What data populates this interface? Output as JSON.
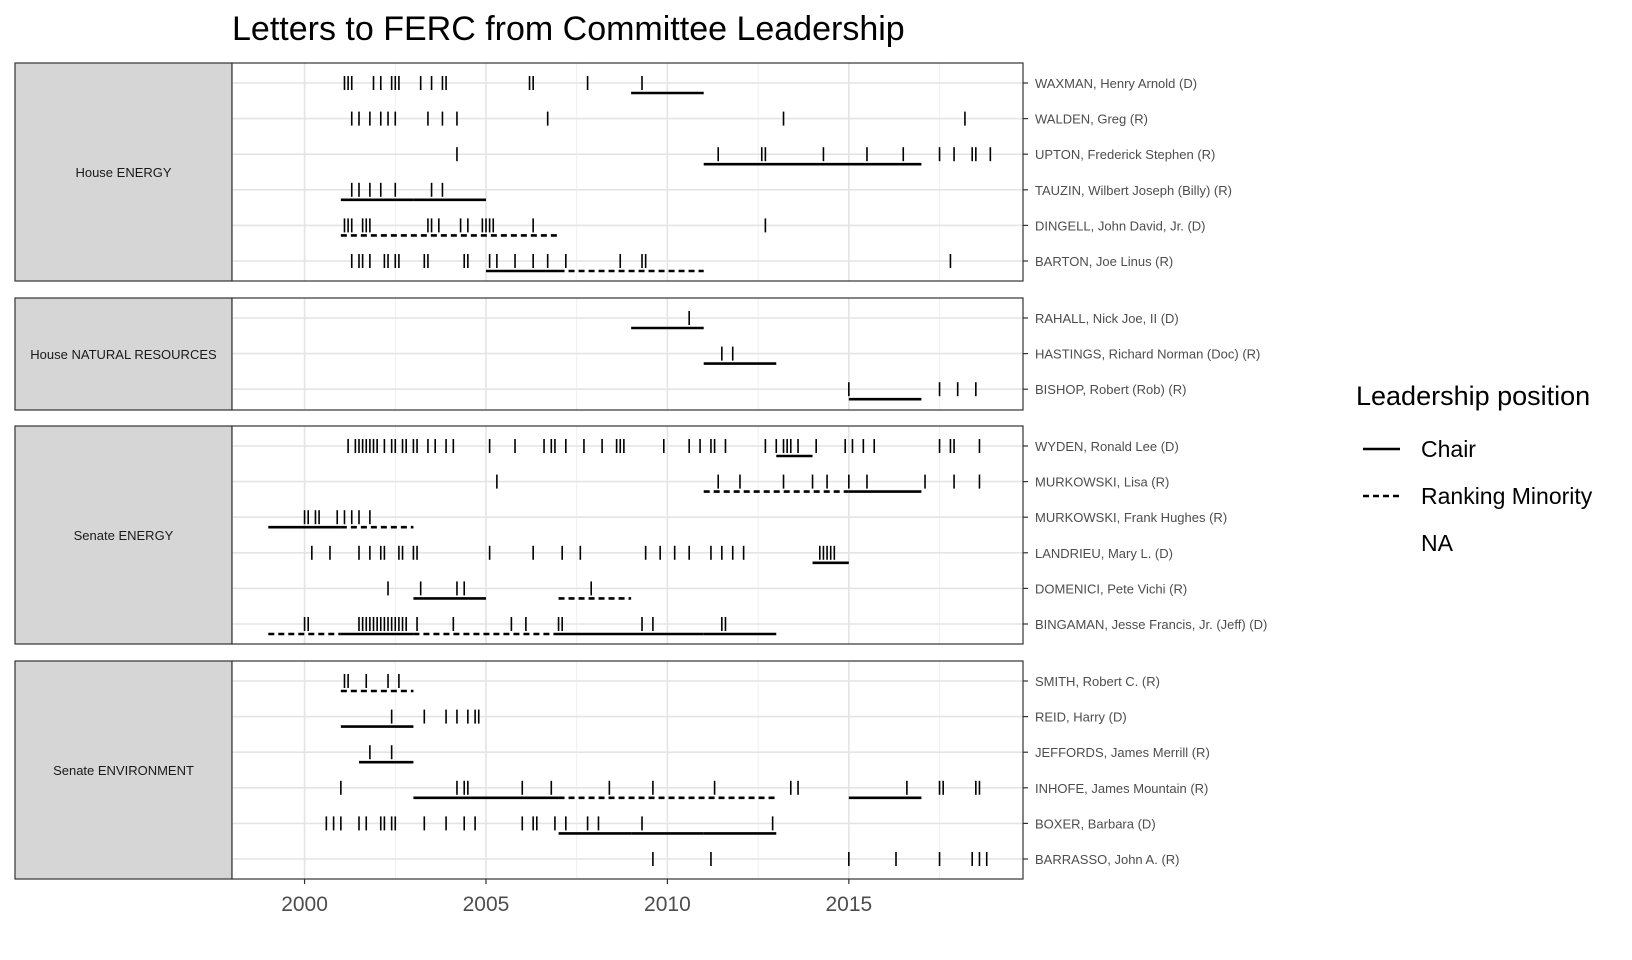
{
  "chart_data": {
    "type": "timeline",
    "title": "Letters to FERC from Committee Leadership",
    "xlabel": "",
    "ylabel": "",
    "xlim": [
      1998.0,
      2019.8
    ],
    "x_ticks": [
      2000,
      2005,
      2010,
      2015
    ],
    "grid": true,
    "legend": {
      "title": "Leadership position",
      "position": "right",
      "entries": [
        {
          "label": "Chair",
          "style": "solid"
        },
        {
          "label": "Ranking Minority",
          "style": "dashed"
        },
        {
          "label": "NA",
          "style": "none"
        }
      ]
    },
    "panels": [
      {
        "label": "House ENERGY",
        "rows": [
          {
            "name": "WAXMAN, Henry Arnold (D)",
            "letters": [
              2001.1,
              2001.2,
              2001.3,
              2001.9,
              2002.1,
              2002.4,
              2002.5,
              2002.6,
              2003.2,
              2003.5,
              2003.8,
              2003.9,
              2006.2,
              2006.3,
              2007.8,
              2009.3
            ],
            "segments": [
              {
                "start": 2009.0,
                "end": 2011.0,
                "position": "Chair"
              }
            ]
          },
          {
            "name": "WALDEN, Greg (R)",
            "letters": [
              2001.3,
              2001.5,
              2001.8,
              2002.1,
              2002.3,
              2002.5,
              2003.4,
              2003.8,
              2004.2,
              2006.7,
              2013.2,
              2018.2
            ],
            "segments": []
          },
          {
            "name": "UPTON, Frederick Stephen (R)",
            "letters": [
              2004.2,
              2011.4,
              2012.6,
              2012.7,
              2014.3,
              2015.5,
              2016.5,
              2017.5,
              2017.9,
              2018.4,
              2018.5,
              2018.9
            ],
            "segments": [
              {
                "start": 2011.0,
                "end": 2017.0,
                "position": "Chair"
              }
            ]
          },
          {
            "name": "TAUZIN, Wilbert Joseph (Billy) (R)",
            "letters": [
              2001.3,
              2001.5,
              2001.8,
              2002.1,
              2002.5,
              2003.5,
              2003.8
            ],
            "segments": [
              {
                "start": 2001.0,
                "end": 2003.0,
                "position": "Chair"
              },
              {
                "start": 2003.0,
                "end": 2005.0,
                "position": "Chair"
              }
            ]
          },
          {
            "name": "DINGELL, John David, Jr. (D)",
            "letters": [
              2001.1,
              2001.2,
              2001.3,
              2001.6,
              2001.7,
              2001.8,
              2003.4,
              2003.5,
              2003.7,
              2004.3,
              2004.5,
              2004.9,
              2005.0,
              2005.1,
              2005.2,
              2006.3,
              2012.7
            ],
            "segments": [
              {
                "start": 2001.0,
                "end": 2007.0,
                "position": "Ranking Minority"
              }
            ]
          },
          {
            "name": "BARTON, Joe Linus (R)",
            "letters": [
              2001.3,
              2001.5,
              2001.6,
              2001.8,
              2002.2,
              2002.3,
              2002.5,
              2002.6,
              2003.3,
              2003.4,
              2004.4,
              2004.5,
              2005.1,
              2005.3,
              2005.8,
              2006.3,
              2006.7,
              2007.2,
              2008.7,
              2009.3,
              2009.4,
              2017.8
            ],
            "segments": [
              {
                "start": 2005.0,
                "end": 2007.0,
                "position": "Chair"
              },
              {
                "start": 2007.0,
                "end": 2011.0,
                "position": "Ranking Minority"
              }
            ]
          }
        ]
      },
      {
        "label": "House NATURAL RESOURCES",
        "rows": [
          {
            "name": "RAHALL, Nick Joe, II (D)",
            "letters": [
              2010.6
            ],
            "segments": [
              {
                "start": 2009.0,
                "end": 2011.0,
                "position": "Chair"
              }
            ]
          },
          {
            "name": "HASTINGS, Richard Norman (Doc) (R)",
            "letters": [
              2011.5,
              2011.8
            ],
            "segments": [
              {
                "start": 2011.0,
                "end": 2013.0,
                "position": "Chair"
              }
            ]
          },
          {
            "name": "BISHOP, Robert (Rob) (R)",
            "letters": [
              2015.0,
              2017.5,
              2018.0,
              2018.5
            ],
            "segments": [
              {
                "start": 2015.0,
                "end": 2017.0,
                "position": "Chair"
              }
            ]
          }
        ]
      },
      {
        "label": "Senate ENERGY",
        "rows": [
          {
            "name": "WYDEN, Ronald Lee (D)",
            "letters": [
              2001.2,
              2001.4,
              2001.5,
              2001.6,
              2001.7,
              2001.8,
              2001.9,
              2002.0,
              2002.2,
              2002.4,
              2002.5,
              2002.7,
              2002.8,
              2003.0,
              2003.1,
              2003.4,
              2003.6,
              2003.9,
              2004.1,
              2005.1,
              2005.8,
              2006.6,
              2006.8,
              2006.9,
              2007.2,
              2007.7,
              2008.2,
              2008.6,
              2008.7,
              2008.8,
              2009.9,
              2010.6,
              2010.9,
              2011.2,
              2011.3,
              2011.6,
              2012.7,
              2013.0,
              2013.2,
              2013.3,
              2013.4,
              2013.6,
              2014.1,
              2014.9,
              2015.1,
              2015.4,
              2015.7,
              2017.5,
              2017.8,
              2017.9,
              2018.6
            ],
            "segments": [
              {
                "start": 2013.0,
                "end": 2014.0,
                "position": "Chair"
              }
            ]
          },
          {
            "name": "MURKOWSKI, Lisa (R)",
            "letters": [
              2005.3,
              2011.4,
              2012.0,
              2013.2,
              2014.0,
              2014.4,
              2015.0,
              2015.5,
              2017.1,
              2017.9,
              2018.6
            ],
            "segments": [
              {
                "start": 2011.0,
                "end": 2015.0,
                "position": "Ranking Minority"
              },
              {
                "start": 2015.0,
                "end": 2017.0,
                "position": "Chair"
              }
            ]
          },
          {
            "name": "MURKOWSKI, Frank Hughes (R)",
            "letters": [
              2000.0,
              2000.1,
              2000.3,
              2000.4,
              2000.9,
              2001.1,
              2001.3,
              2001.5,
              2001.8
            ],
            "segments": [
              {
                "start": 1999.0,
                "end": 2001.0,
                "position": "Chair"
              },
              {
                "start": 2001.0,
                "end": 2003.0,
                "position": "Ranking Minority"
              }
            ]
          },
          {
            "name": "LANDRIEU, Mary L. (D)",
            "letters": [
              2000.2,
              2000.7,
              2001.5,
              2001.8,
              2002.1,
              2002.2,
              2002.6,
              2002.7,
              2003.0,
              2003.1,
              2005.1,
              2006.3,
              2007.1,
              2007.6,
              2009.4,
              2009.8,
              2010.2,
              2010.6,
              2011.2,
              2011.5,
              2011.8,
              2012.1,
              2014.2,
              2014.3,
              2014.4,
              2014.5,
              2014.6
            ],
            "segments": [
              {
                "start": 2014.0,
                "end": 2015.0,
                "position": "Chair"
              }
            ]
          },
          {
            "name": "DOMENICI, Pete Vichi (R)",
            "letters": [
              2002.3,
              2003.2,
              2004.2,
              2004.4,
              2007.9
            ],
            "segments": [
              {
                "start": 2003.0,
                "end": 2005.0,
                "position": "Chair"
              },
              {
                "start": 2007.0,
                "end": 2009.0,
                "position": "Ranking Minority"
              }
            ]
          },
          {
            "name": "BINGAMAN, Jesse Francis, Jr. (Jeff) (D)",
            "letters": [
              2000.0,
              2000.1,
              2001.5,
              2001.6,
              2001.7,
              2001.8,
              2001.9,
              2002.0,
              2002.1,
              2002.2,
              2002.3,
              2002.4,
              2002.5,
              2002.6,
              2002.7,
              2002.8,
              2003.1,
              2004.1,
              2005.7,
              2006.1,
              2007.0,
              2007.1,
              2009.3,
              2009.6,
              2011.5,
              2011.6
            ],
            "segments": [
              {
                "start": 1999.0,
                "end": 2001.0,
                "position": "Ranking Minority"
              },
              {
                "start": 2001.0,
                "end": 2003.0,
                "position": "Chair"
              },
              {
                "start": 2003.0,
                "end": 2007.0,
                "position": "Ranking Minority"
              },
              {
                "start": 2007.0,
                "end": 2011.0,
                "position": "Chair"
              },
              {
                "start": 2011.0,
                "end": 2013.0,
                "position": "Chair"
              }
            ]
          }
        ]
      },
      {
        "label": "Senate ENVIRONMENT",
        "rows": [
          {
            "name": "SMITH, Robert C. (R)",
            "letters": [
              2001.1,
              2001.2,
              2001.7,
              2002.3,
              2002.6
            ],
            "segments": [
              {
                "start": 2001.0,
                "end": 2003.0,
                "position": "Ranking Minority"
              }
            ]
          },
          {
            "name": "REID, Harry (D)",
            "letters": [
              2002.4,
              2003.3,
              2003.9,
              2004.2,
              2004.5,
              2004.7,
              2004.8
            ],
            "segments": [
              {
                "start": 2001.0,
                "end": 2003.0,
                "position": "Chair"
              }
            ]
          },
          {
            "name": "JEFFORDS, James Merrill (R)",
            "letters": [
              2001.8,
              2002.4
            ],
            "segments": [
              {
                "start": 2001.5,
                "end": 2003.0,
                "position": "Chair"
              }
            ]
          },
          {
            "name": "INHOFE, James Mountain (R)",
            "letters": [
              2001.0,
              2004.2,
              2004.4,
              2004.5,
              2006.0,
              2006.8,
              2008.4,
              2009.6,
              2011.3,
              2013.4,
              2013.6,
              2016.6,
              2017.5,
              2017.6,
              2018.5,
              2018.6
            ],
            "segments": [
              {
                "start": 2003.0,
                "end": 2007.0,
                "position": "Chair"
              },
              {
                "start": 2007.0,
                "end": 2013.0,
                "position": "Ranking Minority"
              },
              {
                "start": 2015.0,
                "end": 2017.0,
                "position": "Chair"
              }
            ]
          },
          {
            "name": "BOXER, Barbara (D)",
            "letters": [
              2000.6,
              2000.8,
              2001.0,
              2001.5,
              2001.7,
              2002.1,
              2002.2,
              2002.4,
              2002.5,
              2003.3,
              2003.9,
              2004.4,
              2004.7,
              2006.0,
              2006.3,
              2006.4,
              2006.9,
              2007.2,
              2007.8,
              2008.1,
              2009.3,
              2012.9
            ],
            "segments": [
              {
                "start": 2007.0,
                "end": 2009.0,
                "position": "Chair"
              },
              {
                "start": 2009.0,
                "end": 2011.0,
                "position": "Chair"
              },
              {
                "start": 2011.0,
                "end": 2013.0,
                "position": "Chair"
              }
            ]
          },
          {
            "name": "BARRASSO, John A. (R)",
            "letters": [
              2009.6,
              2011.2,
              2015.0,
              2016.3,
              2017.5,
              2018.4,
              2018.6,
              2018.8
            ],
            "segments": []
          }
        ]
      }
    ]
  }
}
